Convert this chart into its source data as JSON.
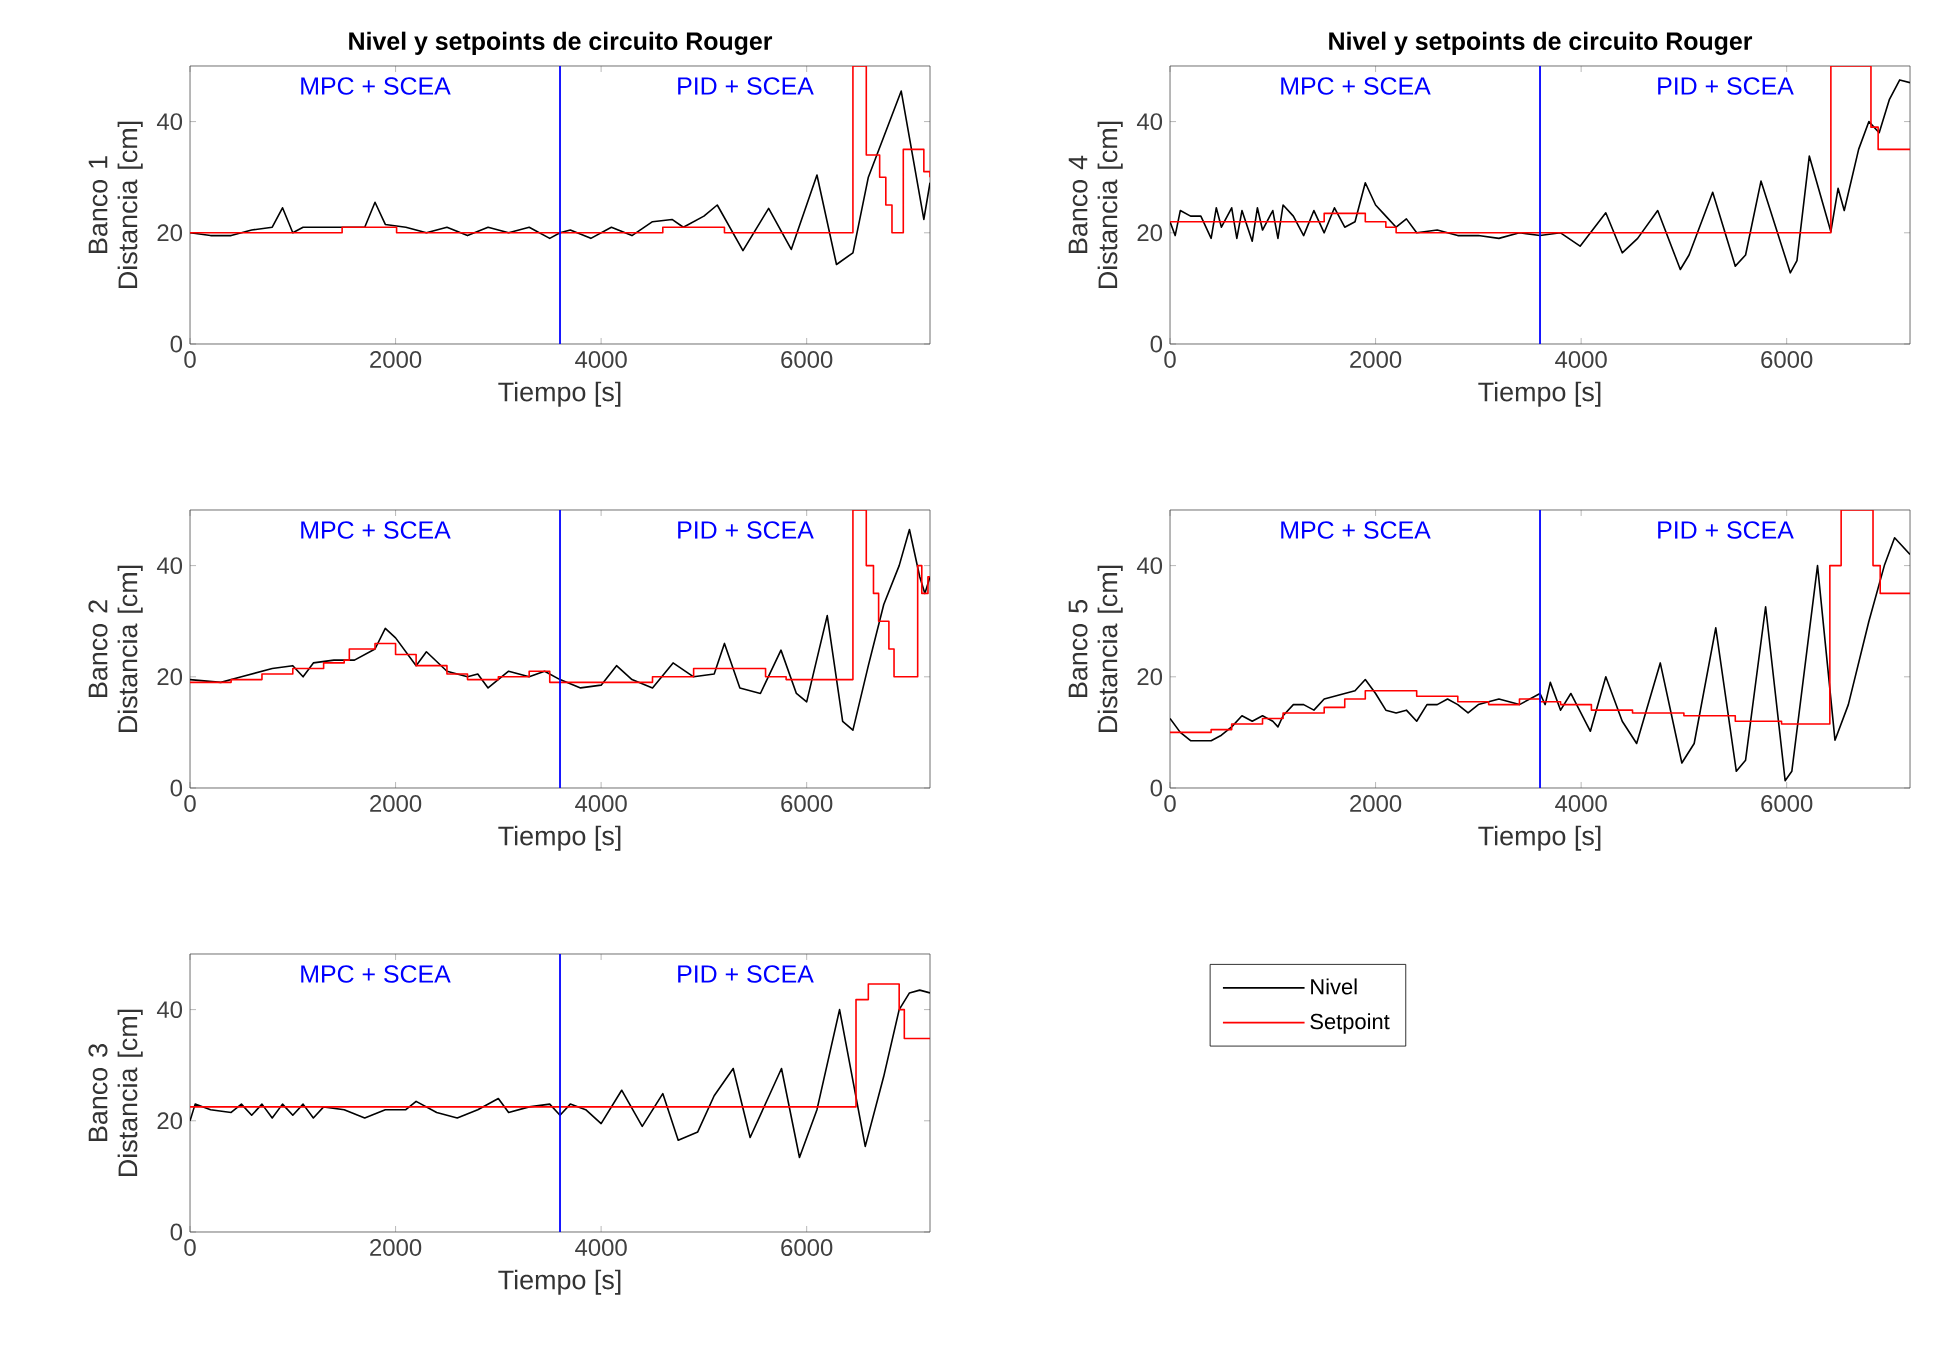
{
  "chart_data": [
    {
      "type": "line",
      "title": "Nivel y setpoints de circuito Rouger",
      "xlabel": "Tiempo [s]",
      "ylabel": "Banco 1 Distancia [cm]",
      "xlim": [
        0,
        7200
      ],
      "ylim": [
        0,
        50
      ],
      "xticks": [
        0,
        2000,
        4000,
        6000
      ],
      "yticks": [
        0,
        20,
        40
      ],
      "annotations": [
        "MPC + SCEA",
        "PID + SCEA"
      ],
      "ref_lines": [
        {
          "axis": "x",
          "value": 3600,
          "color": "#0000ff"
        }
      ],
      "series": [
        {
          "type": "line",
          "color": "#000000",
          "x": [
            0,
            200,
            400,
            600,
            800,
            900,
            1000,
            1100,
            1500,
            1700,
            1800,
            1900,
            2100,
            2300,
            2500,
            2700,
            2900,
            3100,
            3300,
            3500,
            3600,
            3700,
            3900,
            4100,
            4300,
            4500,
            4690,
            4800,
            5000,
            5130,
            5380,
            5630,
            5850,
            6100,
            6290,
            6450,
            6600,
            6920,
            7140,
            7200
          ],
          "values": [
            20,
            19.5,
            19.5,
            20.5,
            21,
            24.5,
            20,
            21,
            21,
            21,
            25.5,
            21.5,
            21,
            20,
            21,
            19.5,
            21,
            20,
            21,
            19,
            20,
            20.5,
            19,
            21,
            19.5,
            22,
            22.4,
            21,
            23,
            25,
            16.8,
            24.4,
            17,
            30.4,
            14.3,
            16.4,
            30,
            45.5,
            22.4,
            29
          ]
        },
        {
          "type": "step",
          "color": "#ff0000",
          "x": [
            0,
            1480,
            2010,
            4600,
            5200,
            6450,
            6580,
            6710,
            6770,
            6830,
            6940,
            7140,
            7200
          ],
          "values": [
            20,
            21,
            20,
            21,
            20,
            50,
            34,
            30,
            25,
            20,
            35,
            31,
            30
          ]
        }
      ]
    },
    {
      "type": "line",
      "xlabel": "Tiempo [s]",
      "ylabel": "Banco 2 Distancia [cm]",
      "xlim": [
        0,
        7200
      ],
      "ylim": [
        0,
        50
      ],
      "xticks": [
        0,
        2000,
        4000,
        6000
      ],
      "yticks": [
        0,
        20,
        40
      ],
      "annotations": [
        "MPC + SCEA",
        "PID + SCEA"
      ],
      "ref_lines": [
        {
          "axis": "x",
          "value": 3600,
          "color": "#0000ff"
        }
      ],
      "series": [
        {
          "type": "line",
          "color": "#000000",
          "x": [
            0,
            300,
            500,
            800,
            1000,
            1100,
            1200,
            1400,
            1600,
            1800,
            1900,
            2000,
            2200,
            2300,
            2500,
            2700,
            2800,
            2900,
            3100,
            3300,
            3450,
            3600,
            3800,
            4000,
            4150,
            4300,
            4500,
            4700,
            4900,
            5100,
            5200,
            5350,
            5550,
            5750,
            5900,
            6000,
            6200,
            6350,
            6450,
            6600,
            6750,
            6900,
            7000,
            7100,
            7150,
            7200
          ],
          "values": [
            19.5,
            19,
            20,
            21.5,
            22,
            20,
            22.5,
            23,
            23,
            25,
            28.7,
            27,
            22,
            24.5,
            21,
            20,
            20.5,
            18,
            21,
            20,
            21,
            19.5,
            18,
            18.5,
            22,
            19.5,
            18,
            22.5,
            20,
            20.5,
            26,
            18,
            17,
            24.8,
            17,
            15.5,
            31,
            12,
            10.4,
            22,
            33,
            40,
            46.5,
            38,
            35,
            38
          ]
        },
        {
          "type": "step",
          "color": "#ff0000",
          "x": [
            0,
            400,
            700,
            1000,
            1300,
            1500,
            1550,
            1800,
            2000,
            2200,
            2500,
            2700,
            3000,
            3300,
            3500,
            4500,
            4900,
            5600,
            5800,
            6450,
            6580,
            6650,
            6700,
            6800,
            6850,
            7080,
            7120,
            7180,
            7200
          ],
          "values": [
            19,
            19.5,
            20.5,
            21.5,
            22.5,
            23,
            25,
            26,
            24,
            22,
            20.5,
            19.5,
            20,
            21,
            19,
            20,
            21.5,
            20,
            19.5,
            50,
            40,
            35,
            30,
            25,
            20,
            40,
            35,
            38,
            38
          ]
        }
      ]
    },
    {
      "type": "line",
      "xlabel": "Tiempo [s]",
      "ylabel": "Banco 3 Distancia [cm]",
      "xlim": [
        0,
        7200
      ],
      "ylim": [
        0,
        50
      ],
      "xticks": [
        0,
        2000,
        4000,
        6000
      ],
      "yticks": [
        0,
        20,
        40
      ],
      "annotations": [
        "MPC + SCEA",
        "PID + SCEA"
      ],
      "ref_lines": [
        {
          "axis": "x",
          "value": 3600,
          "color": "#0000ff"
        }
      ],
      "legend": "right",
      "series": [
        {
          "type": "line",
          "name": "Nivel",
          "color": "#000000",
          "x": [
            0,
            50,
            200,
            400,
            500,
            600,
            700,
            800,
            900,
            1000,
            1100,
            1200,
            1300,
            1500,
            1700,
            1900,
            2100,
            2200,
            2400,
            2600,
            2800,
            3000,
            3100,
            3300,
            3500,
            3600,
            3700,
            3850,
            4000,
            4200,
            4400,
            4600,
            4750,
            4940,
            5100,
            5285,
            5450,
            5755,
            5930,
            6100,
            6320,
            6570,
            6750,
            6900,
            7000,
            7100,
            7200
          ],
          "values": [
            20,
            23,
            22,
            21.5,
            23,
            21,
            23,
            20.5,
            23,
            21,
            23,
            20.5,
            22.5,
            22,
            20.5,
            22,
            22,
            23.5,
            21.5,
            20.5,
            22,
            24,
            21.5,
            22.5,
            23,
            21,
            23,
            22,
            19.5,
            25.5,
            19,
            24.9,
            16.5,
            18,
            24.5,
            29.4,
            17,
            29.4,
            13.4,
            22,
            40,
            15.4,
            28,
            40,
            43,
            43.5,
            43
          ]
        },
        {
          "type": "step",
          "name": "Setpoint",
          "color": "#ff0000",
          "x": [
            0,
            6480,
            6600,
            6900,
            6950,
            7200
          ],
          "values": [
            22.5,
            41.8,
            44.6,
            40,
            34.8,
            34.8
          ]
        }
      ]
    },
    {
      "type": "line",
      "title": "Nivel y setpoints de circuito Rouger",
      "xlabel": "Tiempo [s]",
      "ylabel": "Banco 4 Distancia [cm]",
      "xlim": [
        0,
        7200
      ],
      "ylim": [
        0,
        50
      ],
      "xticks": [
        0,
        2000,
        4000,
        6000
      ],
      "yticks": [
        0,
        20,
        40
      ],
      "annotations": [
        "MPC + SCEA",
        "PID + SCEA"
      ],
      "ref_lines": [
        {
          "axis": "x",
          "value": 3600,
          "color": "#0000ff"
        }
      ],
      "series": [
        {
          "type": "line",
          "color": "#000000",
          "x": [
            0,
            50,
            100,
            200,
            300,
            400,
            450,
            500,
            600,
            650,
            700,
            800,
            850,
            900,
            1000,
            1050,
            1100,
            1200,
            1300,
            1400,
            1500,
            1600,
            1700,
            1800,
            1900,
            2000,
            2100,
            2200,
            2300,
            2400,
            2600,
            2800,
            3000,
            3200,
            3400,
            3600,
            3800,
            3990,
            4240,
            4400,
            4550,
            4745,
            4965,
            5050,
            5280,
            5500,
            5600,
            5750,
            6035,
            6100,
            6220,
            6430,
            6500,
            6560,
            6700,
            6800,
            6900,
            7000,
            7100,
            7200
          ],
          "values": [
            22,
            19.5,
            24,
            23,
            23,
            19,
            24.5,
            21,
            24.5,
            19,
            24,
            18.5,
            24.5,
            20.5,
            24,
            19,
            25,
            23,
            19.5,
            24,
            20,
            24.5,
            21,
            22,
            29,
            25,
            23,
            21,
            22.5,
            20,
            20.5,
            19.5,
            19.5,
            19,
            20,
            19.5,
            20,
            17.6,
            23.6,
            16.4,
            19,
            24,
            13.4,
            16,
            27.3,
            14,
            16,
            29.3,
            12.8,
            15,
            33.8,
            20.2,
            28,
            24,
            35,
            40,
            38,
            44,
            47.5,
            47
          ]
        },
        {
          "type": "step",
          "color": "#ff0000",
          "x": [
            0,
            1500,
            1900,
            2100,
            2200,
            6430,
            6820,
            6890,
            7200
          ],
          "values": [
            22,
            23.5,
            22,
            21,
            20,
            50,
            39,
            35,
            35
          ]
        }
      ]
    },
    {
      "type": "line",
      "xlabel": "Tiempo [s]",
      "ylabel": "Banco 5 Distancia [cm]",
      "xlim": [
        0,
        7200
      ],
      "ylim": [
        0,
        50
      ],
      "xticks": [
        0,
        2000,
        4000,
        6000
      ],
      "yticks": [
        0,
        20,
        40
      ],
      "annotations": [
        "MPC + SCEA",
        "PID + SCEA"
      ],
      "ref_lines": [
        {
          "axis": "x",
          "value": 3600,
          "color": "#0000ff"
        }
      ],
      "series": [
        {
          "type": "line",
          "color": "#000000",
          "x": [
            0,
            100,
            200,
            400,
            500,
            600,
            700,
            800,
            900,
            1000,
            1050,
            1100,
            1200,
            1300,
            1400,
            1500,
            1600,
            1800,
            1900,
            2000,
            2100,
            2200,
            2300,
            2400,
            2500,
            2600,
            2700,
            2800,
            2900,
            3000,
            3200,
            3400,
            3600,
            3650,
            3700,
            3800,
            3900,
            4090,
            4240,
            4400,
            4540,
            4770,
            4980,
            5100,
            5310,
            5510,
            5600,
            5795,
            5985,
            6050,
            6300,
            6470,
            6600,
            6800,
            6950,
            7050,
            7200
          ],
          "values": [
            12.5,
            10,
            8.5,
            8.5,
            9.5,
            11,
            13,
            12,
            13,
            12,
            11,
            13,
            15,
            15,
            14,
            16,
            16.5,
            17.5,
            19.5,
            17,
            14,
            13.5,
            14,
            12,
            15,
            15,
            16,
            15,
            13.5,
            15,
            16,
            15,
            17,
            15,
            19,
            14,
            17,
            10.2,
            20,
            12,
            8,
            22.5,
            4.5,
            8,
            28.8,
            3,
            5,
            32.6,
            1.3,
            3,
            40,
            8.6,
            15,
            30,
            40,
            45,
            42
          ]
        },
        {
          "type": "step",
          "color": "#ff0000",
          "x": [
            0,
            400,
            600,
            900,
            1100,
            1500,
            1700,
            1900,
            2400,
            2800,
            3100,
            3400,
            3600,
            3800,
            4100,
            4500,
            5000,
            5500,
            5950,
            6420,
            6530,
            6840,
            6910,
            7200
          ],
          "values": [
            10,
            10.5,
            11.5,
            12.5,
            13.5,
            14.5,
            16,
            17.5,
            16.5,
            15.5,
            15,
            16,
            15.5,
            15,
            14,
            13.5,
            13,
            12,
            11.5,
            40,
            50,
            40,
            35,
            35
          ]
        }
      ]
    }
  ]
}
